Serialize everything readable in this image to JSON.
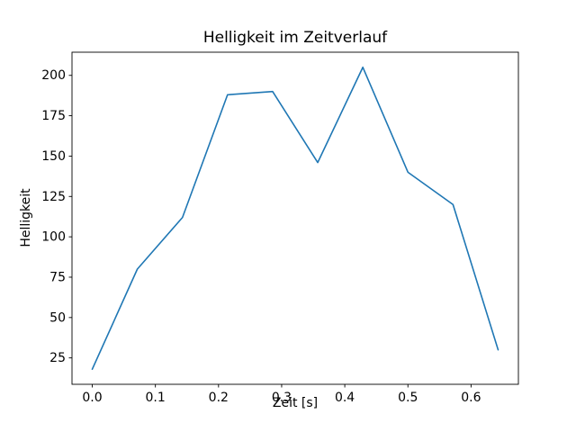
{
  "chart_data": {
    "type": "line",
    "title": "Helligkeit im Zeitverlauf",
    "xlabel": "Zeit [s]",
    "ylabel": "Helligkeit",
    "x": [
      0.0,
      0.0714,
      0.1429,
      0.2143,
      0.2857,
      0.3571,
      0.4286,
      0.5,
      0.5714,
      0.6429
    ],
    "y": [
      18,
      80,
      112,
      188,
      190,
      146,
      205,
      140,
      120,
      30
    ],
    "xticks": [
      0.0,
      0.1,
      0.2,
      0.3,
      0.4,
      0.5,
      0.6
    ],
    "xtick_labels": [
      "0.0",
      "0.1",
      "0.2",
      "0.3",
      "0.4",
      "0.5",
      "0.6"
    ],
    "yticks": [
      25,
      50,
      75,
      100,
      125,
      150,
      175,
      200
    ],
    "ytick_labels": [
      "25",
      "50",
      "75",
      "100",
      "125",
      "150",
      "175",
      "200"
    ],
    "xlim": [
      -0.0321,
      0.675
    ],
    "ylim": [
      8.65,
      214.35
    ],
    "grid": false,
    "legend": null,
    "line_color": "#1f77b4",
    "spine_color": "#000000",
    "background": "#ffffff"
  }
}
